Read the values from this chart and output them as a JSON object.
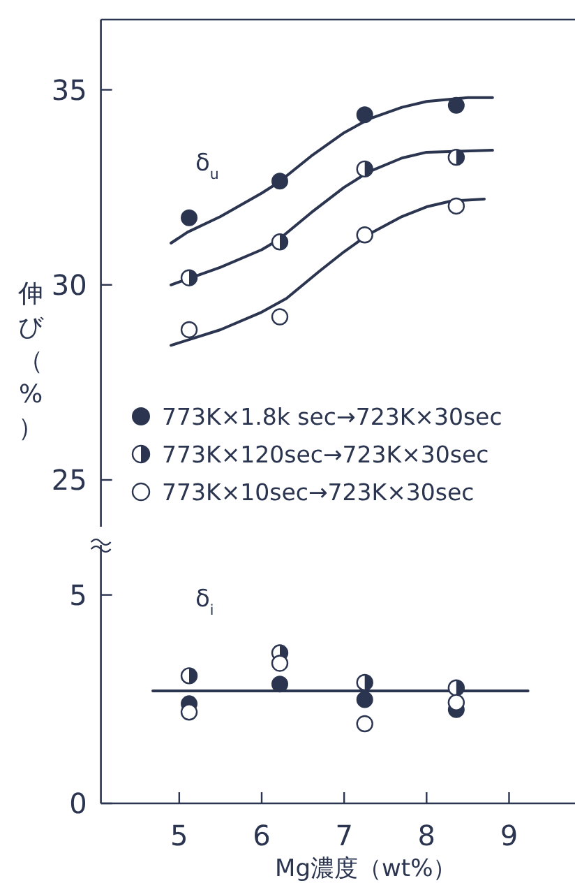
{
  "chart_data": [
    {
      "type": "scatter",
      "ylabel": "伸び（%）",
      "x": [
        5.12,
        6.22,
        7.25,
        8.36
      ],
      "xlim": [
        4.05,
        9.8
      ],
      "ylim": [
        23.8,
        36.8
      ],
      "yticks": [
        25,
        30,
        35
      ],
      "tick_labels": "y",
      "marker": "circle",
      "legend": "bottom",
      "annotations": [
        "δ$_{u}$"
      ],
      "series": [
        {
          "name": "773K×1.8k sec→723K×30sec",
          "color": "#2b3550",
          "values": [
            31.72,
            32.66,
            34.36,
            34.6
          ]
        },
        {
          "name": "773K×120sec→723K×30sec",
          "color": "#2b3550",
          "values": [
            30.18,
            31.1,
            32.97,
            33.27
          ]
        },
        {
          "name": "773K×10sec→723K×30sec",
          "color": "#2b3550",
          "values": [
            28.85,
            29.18,
            31.28,
            32.02
          ]
        },
        {
          "type": "line",
          "marker": "none",
          "color": "#2b3550",
          "x": [
            4.9,
            5.1,
            5.5,
            6.0,
            6.2,
            6.6,
            7.0,
            7.3,
            7.7,
            8.0,
            8.5,
            8.8
          ],
          "values": [
            31.07,
            31.35,
            31.75,
            32.35,
            32.62,
            33.3,
            33.9,
            34.25,
            34.55,
            34.7,
            34.8,
            34.8
          ]
        },
        {
          "type": "line",
          "marker": "none",
          "color": "#2b3550",
          "x": [
            4.9,
            5.5,
            6.0,
            6.2,
            6.6,
            7.0,
            7.3,
            7.7,
            8.0,
            8.8
          ],
          "values": [
            30.0,
            30.45,
            30.9,
            31.15,
            31.85,
            32.5,
            32.9,
            33.25,
            33.4,
            33.45
          ]
        },
        {
          "type": "line",
          "marker": "none",
          "color": "#2b3550",
          "x": [
            4.9,
            5.5,
            6.0,
            6.3,
            6.7,
            7.0,
            7.3,
            7.7,
            8.0,
            8.3,
            8.7
          ],
          "values": [
            28.45,
            28.85,
            29.3,
            29.65,
            30.35,
            30.85,
            31.3,
            31.75,
            32.0,
            32.15,
            32.2
          ]
        }
      ]
    },
    {
      "type": "scatter",
      "xlabel": "Mg濃度（wt%）",
      "x": [
        5.12,
        6.22,
        7.25,
        8.36
      ],
      "xlim": [
        4.05,
        9.8
      ],
      "ylim": [
        0,
        6.2
      ],
      "xticks": [
        5,
        6,
        7,
        8,
        9
      ],
      "yticks": [
        0,
        5
      ],
      "marker": "circle",
      "annotations": [
        "δ$_{i}$"
      ],
      "series": [
        {
          "color": "#2b3550",
          "values": [
            2.39,
            2.86,
            2.49,
            2.25
          ]
        },
        {
          "color": "#2b3550",
          "values": [
            3.06,
            3.61,
            2.9,
            2.77
          ]
        },
        {
          "color": "#2b3550",
          "values": [
            2.19,
            3.36,
            1.91,
            2.42
          ]
        },
        {
          "type": "line",
          "marker": "none",
          "color": "#2b3550",
          "x": [
            4.68,
            9.23
          ],
          "values": [
            2.7,
            2.7
          ]
        }
      ]
    }
  ]
}
